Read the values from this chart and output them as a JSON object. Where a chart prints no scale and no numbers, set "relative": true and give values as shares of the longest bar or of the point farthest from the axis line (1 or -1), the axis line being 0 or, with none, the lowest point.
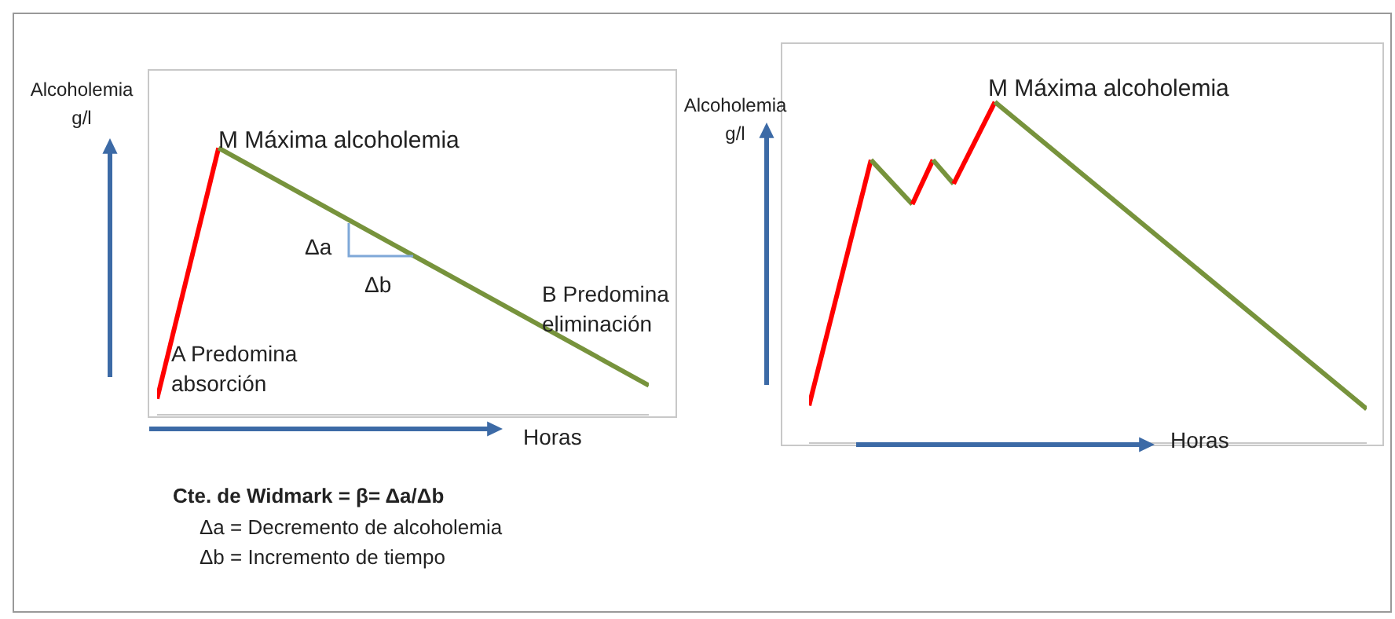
{
  "chart_data": [
    {
      "type": "line",
      "relative": true,
      "xlabel": "Horas",
      "ylabel": "Alcoholemia g/l",
      "categories": [
        null,
        null,
        null,
        null,
        null,
        null,
        null,
        null,
        null
      ],
      "marker": "none",
      "line_style": "solid",
      "series": [
        {
          "color": "#ff0000",
          "values": [
            0.06,
            1,
            null,
            null,
            null,
            null,
            null,
            null,
            null
          ]
        },
        {
          "color": "#77933c",
          "values": [
            null,
            1,
            null,
            null,
            null,
            null,
            null,
            null,
            0.11
          ]
        }
      ],
      "annotations": [
        "M Máxima alcoholemia",
        "A Predomina absorción",
        "B Predomina eliminación",
        "Δa",
        "Δb",
        "Cte. de Widmark = β= Δa/Δb",
        "Δa = Decremento de alcoholemia",
        "Δb = Incremento de tiempo"
      ]
    },
    {
      "type": "line",
      "relative": true,
      "xlabel": "Horas",
      "ylabel": "Alcoholemia g/l",
      "categories": [
        null,
        null,
        null,
        null,
        null,
        null,
        null,
        null,
        null,
        null,
        null,
        null,
        null,
        null,
        null,
        null,
        null,
        null,
        null,
        null,
        null,
        null,
        null,
        null,
        null,
        null,
        null,
        null
      ],
      "marker": "none",
      "line_style": "solid",
      "series": [
        {
          "color": "#ff0000",
          "values": [
            0.11,
            null,
            null,
            0.83,
            null,
            null,
            null,
            null,
            null,
            null,
            null,
            null,
            null,
            null,
            null,
            null,
            null,
            null,
            null,
            null,
            null,
            null,
            null,
            null,
            null,
            null,
            null,
            null
          ]
        },
        {
          "color": "#77933c",
          "values": [
            null,
            null,
            null,
            0.83,
            null,
            0.7,
            null,
            null,
            null,
            null,
            null,
            null,
            null,
            null,
            null,
            null,
            null,
            null,
            null,
            null,
            null,
            null,
            null,
            null,
            null,
            null,
            null,
            null
          ]
        },
        {
          "color": "#ff0000",
          "values": [
            null,
            null,
            null,
            null,
            null,
            0.7,
            0.83,
            null,
            null,
            null,
            null,
            null,
            null,
            null,
            null,
            null,
            null,
            null,
            null,
            null,
            null,
            null,
            null,
            null,
            null,
            null,
            null,
            null
          ]
        },
        {
          "color": "#77933c",
          "values": [
            null,
            null,
            null,
            null,
            null,
            null,
            0.83,
            0.76,
            null,
            null,
            null,
            null,
            null,
            null,
            null,
            null,
            null,
            null,
            null,
            null,
            null,
            null,
            null,
            null,
            null,
            null,
            null,
            null
          ]
        },
        {
          "color": "#ff0000",
          "values": [
            null,
            null,
            null,
            null,
            null,
            null,
            null,
            0.76,
            null,
            1,
            null,
            null,
            null,
            null,
            null,
            null,
            null,
            null,
            null,
            null,
            null,
            null,
            null,
            null,
            null,
            null,
            null,
            null
          ]
        },
        {
          "color": "#77933c",
          "values": [
            null,
            null,
            null,
            null,
            null,
            null,
            null,
            null,
            null,
            1,
            null,
            null,
            null,
            null,
            null,
            null,
            null,
            null,
            null,
            null,
            null,
            null,
            null,
            null,
            null,
            null,
            null,
            0.1
          ]
        }
      ],
      "annotations": [
        "M Máxima alcoholemia"
      ]
    }
  ]
}
